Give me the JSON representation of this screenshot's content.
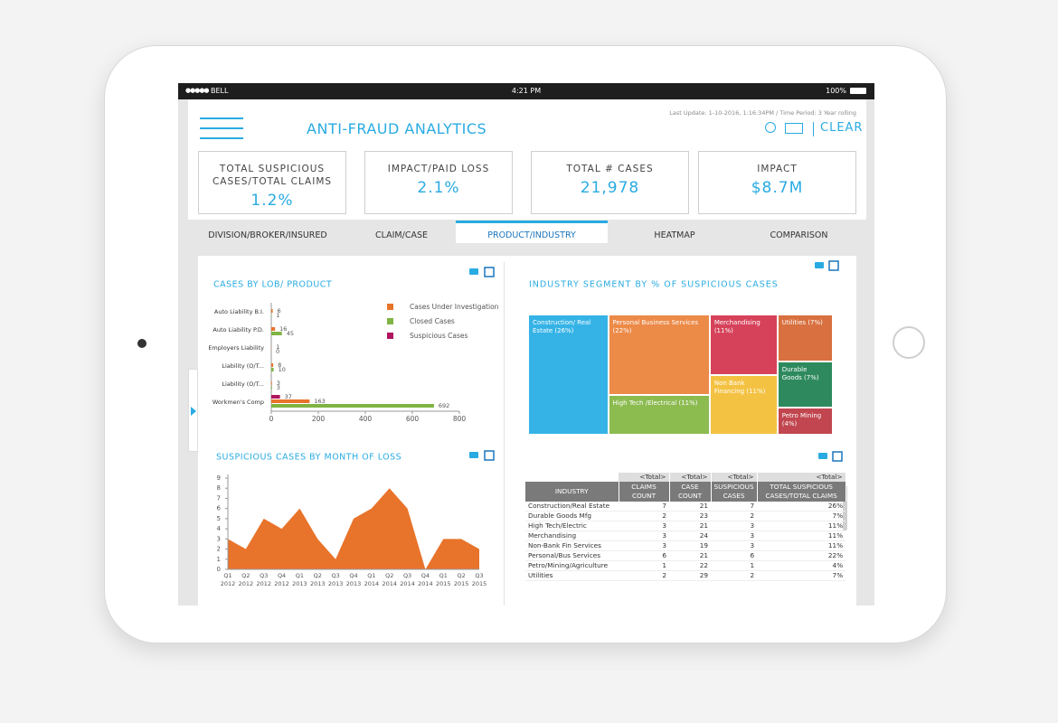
{
  "status_bar": {
    "carrier": "BELL",
    "time": "4:21 PM",
    "battery": "100%"
  },
  "header": {
    "title": "ANTI-FRAUD ANALYTICS",
    "last_update": "Last Update: 1-10-2016, 1:16:34PM / Time Period: 3 Year rolling",
    "clear": "CLEAR"
  },
  "kpis": [
    {
      "label": "TOTAL SUSPICIOUS CASES/TOTAL CLAIMS",
      "value": "1.2%"
    },
    {
      "label": "IMPACT/PAID LOSS",
      "value": "2.1%"
    },
    {
      "label": "TOTAL # CASES",
      "value": "21,978"
    },
    {
      "label": "IMPACT",
      "value": "$8.7M"
    }
  ],
  "tabs": {
    "items": [
      "DIVISION/BROKER/INSURED",
      "CLAIM/CASE",
      "PRODUCT/INDUSTRY",
      "HEATMAP",
      "COMPARISON"
    ],
    "active": 2
  },
  "chart_data": [
    {
      "type": "bar",
      "orientation": "horizontal",
      "title": "CASES BY LOB/ PRODUCT",
      "categories": [
        "Auto Liability B.I.",
        "Auto Liability P.D.",
        "Employers Liability",
        "Liability (O/T...",
        "Liability (O/T...",
        "Workmen's Comp"
      ],
      "series": [
        {
          "name": "Cases Under Investigation",
          "color": "#e8732a",
          "values": [
            6,
            16,
            1,
            8,
            3,
            163
          ]
        },
        {
          "name": "Closed Cases",
          "color": "#7fb442",
          "values": [
            1,
            45,
            0,
            10,
            3,
            692
          ]
        },
        {
          "name": "Suspicious Cases",
          "color": "#b0155e",
          "values": [
            null,
            null,
            null,
            null,
            null,
            37
          ]
        }
      ],
      "xlim": [
        0,
        800
      ],
      "xticks": [
        0,
        200,
        400,
        600,
        800
      ]
    },
    {
      "type": "area",
      "title": "SUSPICIOUS CASES BY MONTH OF LOSS",
      "categories": [
        "Q1 2012",
        "Q2 2012",
        "Q3 2012",
        "Q4 2012",
        "Q1 2013",
        "Q2 2013",
        "Q3 2013",
        "Q4 2013",
        "Q1 2014",
        "Q2 2014",
        "Q3 2014",
        "Q4 2014",
        "Q1 2015",
        "Q2 2015",
        "Q3 2015"
      ],
      "values": [
        3,
        2,
        5,
        4,
        6,
        3,
        1,
        5,
        6,
        8,
        6,
        0,
        3,
        3,
        2
      ],
      "color": "#e8732a",
      "ylim": [
        0,
        9
      ],
      "yticks": [
        0,
        1,
        2,
        3,
        4,
        5,
        6,
        7,
        8,
        9
      ]
    },
    {
      "type": "treemap",
      "title": "INDUSTRY SEGMENT BY % OF SUSPICIOUS CASES",
      "categories": [
        "Construction/ Real Estate",
        "Personal Business Services",
        "High Tech /Electrical",
        "Merchandising",
        "Non Bank Financing",
        "Utilities",
        "Durable Goods",
        "Petro Mining"
      ],
      "values": [
        26,
        22,
        11,
        11,
        11,
        7,
        7,
        4
      ],
      "value_labels": [
        "(26%)",
        "(22%)",
        "(11%)",
        "(11%)",
        "(11%)",
        "(7%)",
        "(7%)",
        "(4%)"
      ],
      "colors": [
        "#35b3e6",
        "#ec8a48",
        "#8cbb50",
        "#d6425a",
        "#f4c243",
        "#d8703f",
        "#2e8a5e",
        "#c1464f"
      ]
    }
  ],
  "table": {
    "total_row": [
      "<Total>",
      "<Total>",
      "<Total>",
      "<Total>"
    ],
    "columns": [
      "INDUSTRY",
      "CLAIMS COUNT",
      "CASE COUNT",
      "SUSPICIOUS CASES",
      "TOTAL SUSPICIOUS CASES/TOTAL CLAIMS"
    ],
    "rows": [
      [
        "Construction/Real Estate",
        7,
        21,
        7,
        "26%"
      ],
      [
        "Durable Goods Mfg",
        2,
        23,
        2,
        "7%"
      ],
      [
        "High Tech/Electric",
        3,
        21,
        3,
        "11%"
      ],
      [
        "Merchandising",
        3,
        24,
        3,
        "11%"
      ],
      [
        "Non-Bank Fin Services",
        3,
        19,
        3,
        "11%"
      ],
      [
        "Personal/Bus Services",
        6,
        21,
        6,
        "22%"
      ],
      [
        "Petro/Mining/Agriculture",
        1,
        22,
        1,
        "4%"
      ],
      [
        "Utilities",
        2,
        29,
        2,
        "7%"
      ]
    ]
  }
}
